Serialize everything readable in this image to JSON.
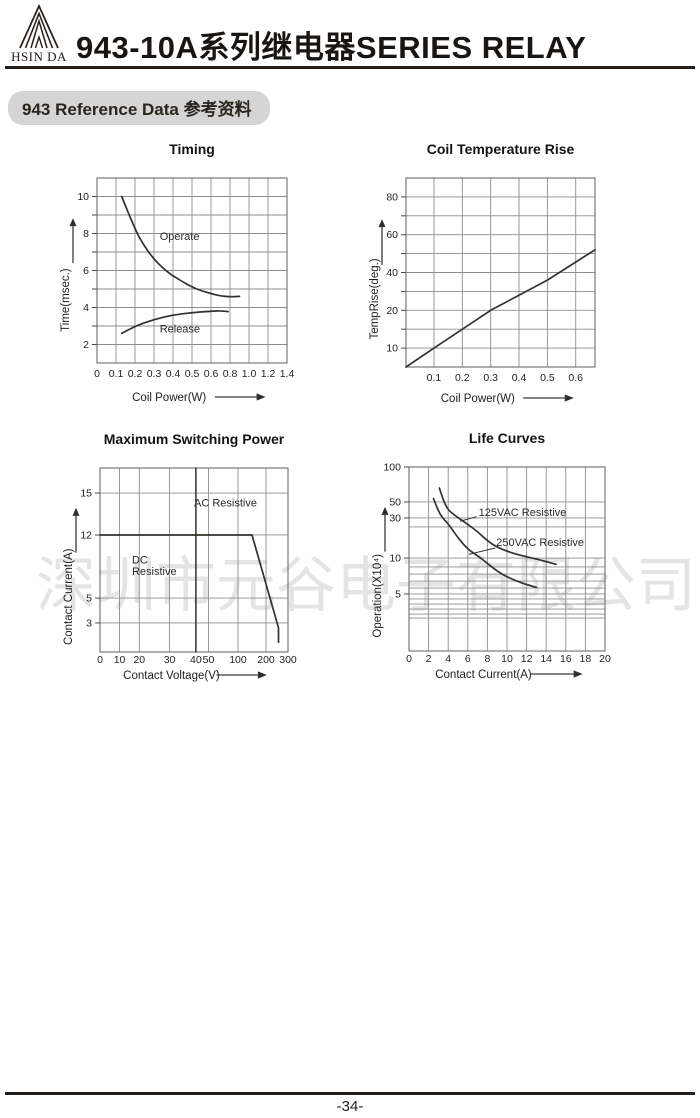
{
  "page": {
    "number": "-34-"
  },
  "header": {
    "logo_text": "HSIN DA",
    "title": "943-10A系列继电器SERIES RELAY"
  },
  "section": {
    "badge": "943 Reference Data 参考资料"
  },
  "watermark": {
    "text": "深圳市元谷电子有限公司"
  },
  "chart_data": [
    {
      "id": "timing",
      "type": "line",
      "title": "Timing",
      "xlabel": "Coil Power(W)",
      "ylabel": "Time(msec.)",
      "grid": true,
      "tick_all_y": true,
      "x_ticks": [
        {
          "v": 0,
          "f": 0,
          "label": "0"
        },
        {
          "v": 0.1,
          "f": 0.1,
          "label": "0.1"
        },
        {
          "v": 0.2,
          "f": 0.2,
          "label": "0.2"
        },
        {
          "v": 0.3,
          "f": 0.3,
          "label": "0.3"
        },
        {
          "v": 0.4,
          "f": 0.4,
          "label": "0.4"
        },
        {
          "v": 0.5,
          "f": 0.5,
          "label": "0.5"
        },
        {
          "v": 0.6,
          "f": 0.6,
          "label": "0.6"
        },
        {
          "v": 0.8,
          "f": 0.7,
          "label": "0.8"
        },
        {
          "v": 1.0,
          "f": 0.8,
          "label": "1.0"
        },
        {
          "v": 1.2,
          "f": 0.9,
          "label": "1.2"
        },
        {
          "v": 1.4,
          "f": 1,
          "label": "1.4"
        }
      ],
      "y_ticks": [
        {
          "v": 11,
          "f": 0,
          "label": ""
        },
        {
          "v": 10,
          "f": 0.1,
          "label": "10"
        },
        {
          "v": 9,
          "f": 0.2,
          "label": ""
        },
        {
          "v": 8,
          "f": 0.3,
          "label": "8"
        },
        {
          "v": 7,
          "f": 0.4,
          "label": ""
        },
        {
          "v": 6,
          "f": 0.5,
          "label": "6"
        },
        {
          "v": 5,
          "f": 0.6,
          "label": ""
        },
        {
          "v": 4,
          "f": 0.7,
          "label": "4"
        },
        {
          "v": 3,
          "f": 0.8,
          "label": ""
        },
        {
          "v": 2,
          "f": 0.9,
          "label": "2"
        },
        {
          "v": 1,
          "f": 1,
          "label": ""
        }
      ],
      "series": [
        {
          "name": "Operate",
          "smooth": true,
          "points": [
            [
              0.13,
              10
            ],
            [
              0.2,
              8.2
            ],
            [
              0.25,
              7.3
            ],
            [
              0.3,
              6.6
            ],
            [
              0.35,
              6.1
            ],
            [
              0.4,
              5.7
            ],
            [
              0.45,
              5.4
            ],
            [
              0.5,
              5.1
            ],
            [
              0.55,
              4.9
            ],
            [
              0.6,
              4.75
            ],
            [
              0.7,
              4.62
            ],
            [
              0.8,
              4.58
            ],
            [
              0.9,
              4.6
            ]
          ],
          "label": {
            "text": "Operate",
            "fx": 0.33,
            "fy": 0.335,
            "anchor": "start"
          }
        },
        {
          "name": "Release",
          "smooth": true,
          "points": [
            [
              0.13,
              2.6
            ],
            [
              0.2,
              3.0
            ],
            [
              0.3,
              3.35
            ],
            [
              0.4,
              3.6
            ],
            [
              0.5,
              3.72
            ],
            [
              0.6,
              3.8
            ],
            [
              0.7,
              3.82
            ],
            [
              0.78,
              3.78
            ]
          ],
          "label": {
            "text": "Release",
            "fx": 0.33,
            "fy": 0.835,
            "anchor": "start"
          }
        }
      ]
    },
    {
      "id": "temp",
      "type": "line",
      "title": "Coil Temperature Rise",
      "xlabel": "Coil Power(W)",
      "ylabel": "TempRise(deg.)",
      "grid": true,
      "tick_all_y": true,
      "x_ticks": [
        {
          "v": 0,
          "f": 0,
          "label": ""
        },
        {
          "v": 0.1,
          "f": 0.148,
          "label": "0.1"
        },
        {
          "v": 0.2,
          "f": 0.298,
          "label": "0.2"
        },
        {
          "v": 0.3,
          "f": 0.448,
          "label": "0.3"
        },
        {
          "v": 0.4,
          "f": 0.598,
          "label": "0.4"
        },
        {
          "v": 0.5,
          "f": 0.748,
          "label": "0.5"
        },
        {
          "v": 0.6,
          "f": 0.898,
          "label": "0.6"
        },
        {
          "v": 0.67,
          "f": 1,
          "label": ""
        }
      ],
      "y_ticks": [
        {
          "v": 90,
          "f": 0,
          "label": ""
        },
        {
          "v": 80,
          "f": 0.1,
          "label": "80"
        },
        {
          "v": 70,
          "f": 0.2,
          "label": ""
        },
        {
          "v": 60,
          "f": 0.3,
          "label": "60"
        },
        {
          "v": 50,
          "f": 0.4,
          "label": ""
        },
        {
          "v": 40,
          "f": 0.5,
          "label": "40"
        },
        {
          "v": 30,
          "f": 0.6,
          "label": ""
        },
        {
          "v": 20,
          "f": 0.7,
          "label": "20"
        },
        {
          "v": 15,
          "f": 0.8,
          "label": ""
        },
        {
          "v": 10,
          "f": 0.9,
          "label": "10"
        },
        {
          "v": 5,
          "f": 1,
          "label": ""
        }
      ],
      "series": [
        {
          "name": "Temperature Rise",
          "smooth": false,
          "points": [
            [
              0,
              5
            ],
            [
              0.1,
              10
            ],
            [
              0.3,
              20
            ],
            [
              0.5,
              36
            ],
            [
              0.67,
              52
            ]
          ]
        }
      ]
    },
    {
      "id": "power",
      "type": "line",
      "title": "Maximum Switching Power",
      "xlabel": "Contact Voltage(V)",
      "ylabel": "Contact Current(A)",
      "grid": true,
      "tick_all_y": true,
      "x_ticks": [
        {
          "v": 0,
          "f": 0,
          "label": "0"
        },
        {
          "v": 10,
          "f": 0.104,
          "label": "10"
        },
        {
          "v": 20,
          "f": 0.209,
          "label": "20"
        },
        {
          "v": 30,
          "f": 0.37,
          "label": "30"
        },
        {
          "v": 40,
          "f": 0.51,
          "label": "40"
        },
        {
          "v": 50,
          "f": 0.577,
          "label": "50"
        },
        {
          "v": 100,
          "f": 0.734,
          "label": "100"
        },
        {
          "v": 200,
          "f": 0.883,
          "label": "200"
        },
        {
          "v": 300,
          "f": 1,
          "label": "300"
        }
      ],
      "y_ticks": [
        {
          "v": 17,
          "f": 0,
          "label": ""
        },
        {
          "v": 15,
          "f": 0.136,
          "label": "15"
        },
        {
          "v": 12,
          "f": 0.364,
          "label": "12"
        },
        {
          "v": 5,
          "f": 0.707,
          "label": "5"
        },
        {
          "v": 3,
          "f": 0.842,
          "label": "3"
        },
        {
          "v": 1.8,
          "f": 1,
          "label": ""
        }
      ],
      "series": [
        {
          "name": "AC Resistive",
          "smooth": false,
          "points": [
            [
              0,
              12
            ],
            [
              150,
              12
            ],
            [
              257,
              2.8
            ],
            [
              257,
              2.2
            ]
          ],
          "label": {
            "text": "AC Resistive",
            "fx": 0.5,
            "fy": 0.21,
            "anchor": "start"
          }
        },
        {
          "name": "DC Resistive",
          "smooth": false,
          "width": 1.5,
          "points": [
            [
              40,
              17
            ],
            [
              40,
              1.8
            ]
          ],
          "label": {
            "text": "DC\nResistive",
            "fx": 0.17,
            "fy": 0.52,
            "anchor": "start"
          }
        }
      ]
    },
    {
      "id": "life",
      "type": "line",
      "title": "Life Curves",
      "xlabel": "Contact Current(A)",
      "ylabel": "Operation(X10⁴)",
      "grid": true,
      "tick_all_y": false,
      "x_ticks": [
        {
          "v": 0,
          "f": 0,
          "label": "0"
        },
        {
          "v": 2,
          "f": 0.1,
          "label": "2"
        },
        {
          "v": 4,
          "f": 0.2,
          "label": "4"
        },
        {
          "v": 6,
          "f": 0.3,
          "label": "6"
        },
        {
          "v": 8,
          "f": 0.4,
          "label": "8"
        },
        {
          "v": 10,
          "f": 0.5,
          "label": "10"
        },
        {
          "v": 12,
          "f": 0.6,
          "label": "12"
        },
        {
          "v": 14,
          "f": 0.7,
          "label": "14"
        },
        {
          "v": 16,
          "f": 0.8,
          "label": "16"
        },
        {
          "v": 18,
          "f": 0.9,
          "label": "18"
        },
        {
          "v": 20,
          "f": 1,
          "label": "20"
        }
      ],
      "y_ticks": [
        {
          "v": 100,
          "f": 0,
          "label": "100"
        },
        {
          "v": 50,
          "f": 0.19,
          "label": "50"
        },
        {
          "v": 30,
          "f": 0.277,
          "label": "30"
        },
        {
          "v": 20,
          "f": 0.326,
          "label": ""
        },
        {
          "v": 10,
          "f": 0.495,
          "label": "10"
        },
        {
          "v": 9,
          "f": 0.543,
          "label": ""
        },
        {
          "v": 8,
          "f": 0.582,
          "label": ""
        },
        {
          "v": 7,
          "f": 0.62,
          "label": ""
        },
        {
          "v": 6,
          "f": 0.658,
          "label": ""
        },
        {
          "v": 5,
          "f": 0.69,
          "label": "5"
        },
        {
          "v": 4.5,
          "f": 0.717,
          "label": ""
        },
        {
          "v": 4,
          "f": 0.745,
          "label": ""
        },
        {
          "v": 3.5,
          "f": 0.772,
          "label": ""
        },
        {
          "v": 3,
          "f": 0.799,
          "label": ""
        },
        {
          "v": 2.5,
          "f": 0.821,
          "label": ""
        },
        {
          "v": 1,
          "f": 1,
          "label": ""
        }
      ],
      "series": [
        {
          "name": "125VAC Resistive",
          "smooth": true,
          "points": [
            [
              3.1,
              70
            ],
            [
              3.5,
              52
            ],
            [
              4,
              40
            ],
            [
              4.5,
              35
            ],
            [
              5,
              30.5
            ],
            [
              6,
              23
            ],
            [
              7,
              18.5
            ],
            [
              8,
              15.5
            ],
            [
              9,
              13.5
            ],
            [
              10,
              12.2
            ],
            [
              11,
              11.2
            ],
            [
              12,
              10.4
            ],
            [
              13,
              9.9
            ],
            [
              14,
              9.6
            ],
            [
              15,
              9.3
            ]
          ],
          "label": {
            "text": "125VAC Resistive",
            "fx": 0.355,
            "fy": 0.265,
            "anchor": "start"
          },
          "leader": [
            [
              0.345,
              0.27
            ],
            [
              0.26,
              0.295
            ]
          ]
        },
        {
          "name": "250VAC Resistive",
          "smooth": true,
          "points": [
            [
              2.5,
              55
            ],
            [
              3,
              38
            ],
            [
              3.5,
              29
            ],
            [
              4,
              23.5
            ],
            [
              5,
              16.5
            ],
            [
              6,
              12.8
            ],
            [
              7,
              10.8
            ],
            [
              8,
              9.4
            ],
            [
              9,
              8.4
            ],
            [
              10,
              7.6
            ],
            [
              11,
              7.0
            ],
            [
              12,
              6.5
            ],
            [
              13,
              6.1
            ]
          ],
          "label": {
            "text": "250VAC Resistive",
            "fx": 0.445,
            "fy": 0.43,
            "anchor": "start"
          },
          "leader": [
            [
              0.44,
              0.44
            ],
            [
              0.305,
              0.475
            ]
          ]
        }
      ]
    }
  ]
}
